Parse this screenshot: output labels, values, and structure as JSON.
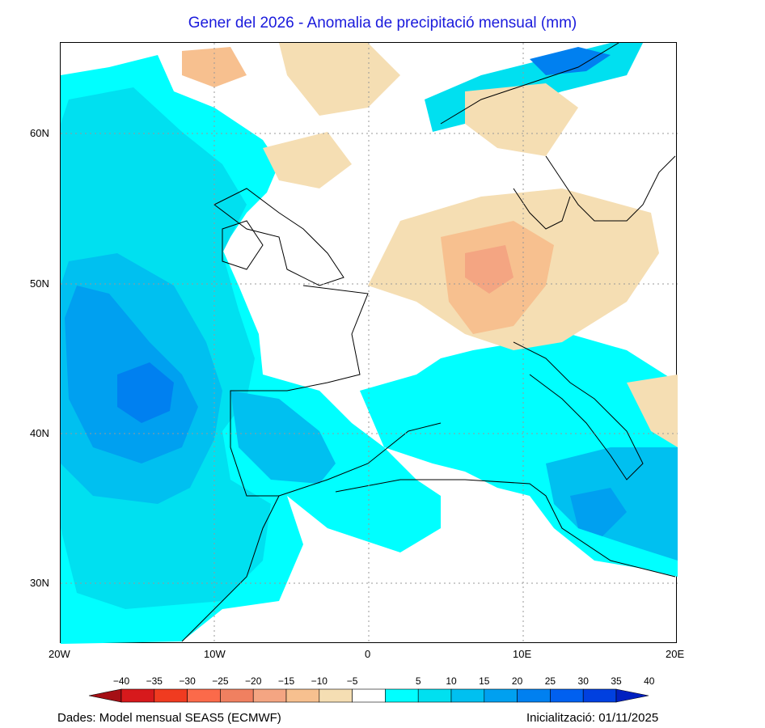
{
  "title": "Gener del 2026 - Anomalia de precipitació mensual (mm)",
  "footer": {
    "source": "Dades: Model mensual SEAS5 (ECMWF)",
    "init": "Inicialització: 01/11/2025"
  },
  "map": {
    "lat_labels": [
      "60N",
      "50N",
      "40N",
      "30N"
    ],
    "lon_labels": [
      "20W",
      "10W",
      "0",
      "10E",
      "20E"
    ]
  },
  "colorbar": {
    "labels": [
      "−40",
      "−35",
      "−30",
      "−25",
      "−20",
      "−15",
      "−10",
      "−5",
      "5",
      "10",
      "15",
      "20",
      "25",
      "30",
      "35",
      "40"
    ],
    "colors": [
      "#a50f15",
      "#d7191c",
      "#f03b20",
      "#fb6a4a",
      "#f08060",
      "#f4a582",
      "#f7c08f",
      "#f5deb3",
      "#ffffff",
      "#00ffff",
      "#00e0f0",
      "#00c0f0",
      "#00a0f0",
      "#0080f0",
      "#0060f0",
      "#0040e0",
      "#0020c0"
    ]
  }
}
